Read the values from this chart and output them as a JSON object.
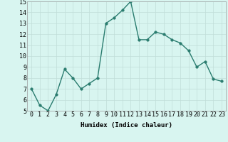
{
  "x": [
    0,
    1,
    2,
    3,
    4,
    5,
    6,
    7,
    8,
    9,
    10,
    11,
    12,
    13,
    14,
    15,
    16,
    17,
    18,
    19,
    20,
    21,
    22,
    23
  ],
  "y": [
    7.0,
    5.5,
    5.0,
    6.5,
    8.8,
    8.0,
    7.0,
    7.5,
    8.0,
    13.0,
    13.5,
    14.2,
    15.0,
    11.5,
    11.5,
    12.2,
    12.0,
    11.5,
    11.2,
    10.5,
    9.0,
    9.5,
    7.9,
    7.7
  ],
  "line_color": "#2a7c6f",
  "marker_color": "#2a7c6f",
  "bg_color": "#d8f5f0",
  "grid_color": "#c0ddd8",
  "xlabel": "Humidex (Indice chaleur)",
  "ylim": [
    5,
    15
  ],
  "xlim_min": -0.5,
  "xlim_max": 23.5,
  "yticks": [
    5,
    6,
    7,
    8,
    9,
    10,
    11,
    12,
    13,
    14,
    15
  ],
  "xticks": [
    0,
    1,
    2,
    3,
    4,
    5,
    6,
    7,
    8,
    9,
    10,
    11,
    12,
    13,
    14,
    15,
    16,
    17,
    18,
    19,
    20,
    21,
    22,
    23
  ],
  "xlabel_fontsize": 6.5,
  "tick_fontsize": 6,
  "marker_size": 2.5,
  "line_width": 1.0
}
